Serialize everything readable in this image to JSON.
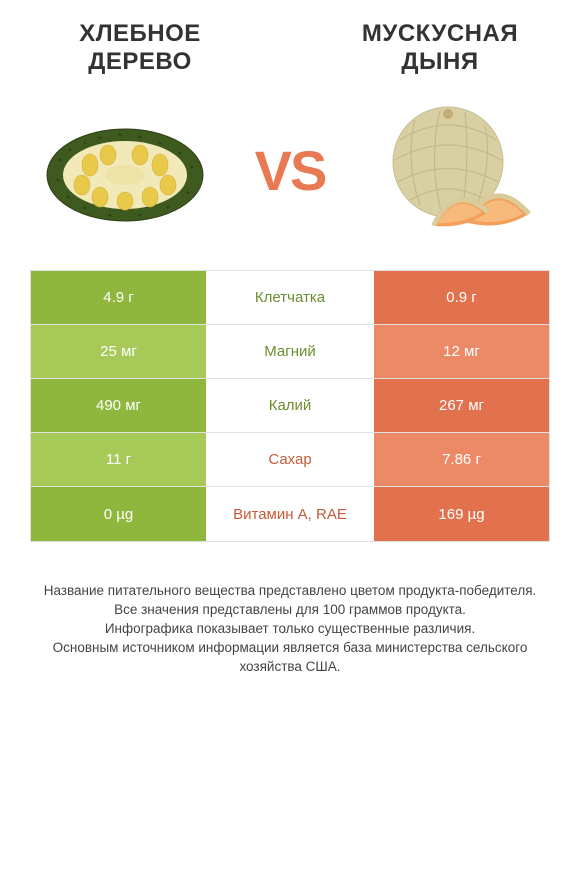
{
  "colors": {
    "left_bg": "#8fb63d",
    "left_bg_light": "#a6c957",
    "right_bg": "#e2714d",
    "right_bg_light": "#ec8a68",
    "vs": "#e87953",
    "row_text": "#ffffff",
    "nutrient_left": "#6b8e2f",
    "nutrient_right": "#c65a3a"
  },
  "titles": {
    "left": "ХЛЕБНОЕ ДЕРЕВО",
    "right": "МУСКУСНАЯ ДЫНЯ",
    "vs": "VS"
  },
  "rows": [
    {
      "left": "4.9 г",
      "name": "Клетчатка",
      "right": "0.9 г",
      "winner": "left"
    },
    {
      "left": "25 мг",
      "name": "Магний",
      "right": "12 мг",
      "winner": "left"
    },
    {
      "left": "490 мг",
      "name": "Калий",
      "right": "267 мг",
      "winner": "left"
    },
    {
      "left": "11 г",
      "name": "Сахар",
      "right": "7.86 г",
      "winner": "right"
    },
    {
      "left": "0 µg",
      "name": "Витамин A, RAE",
      "right": "169 µg",
      "winner": "right"
    }
  ],
  "footer": [
    "Название питательного вещества представлено цветом продукта-победителя.",
    "Все значения представлены для 100 граммов продукта.",
    "Инфографика показывает только существенные различия.",
    "Основным источником информации является база министерства сельского хозяйства США."
  ]
}
